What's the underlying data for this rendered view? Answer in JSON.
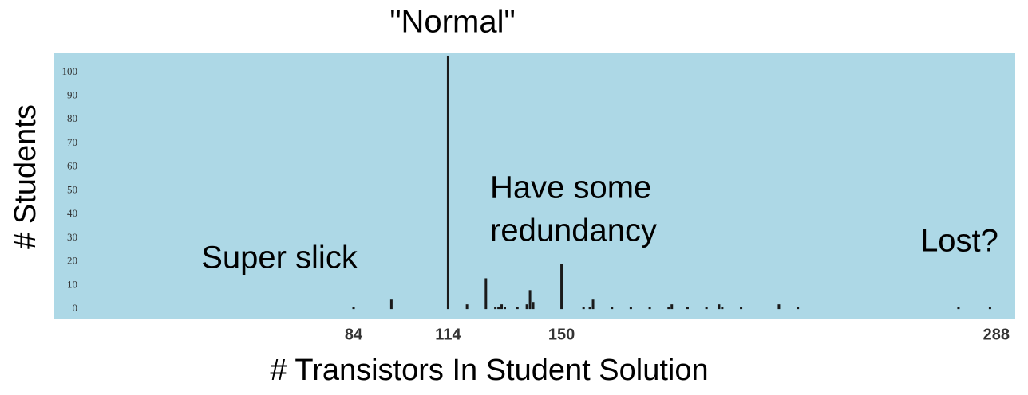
{
  "chart_data": {
    "type": "bar",
    "x_label": "# Transistors In Student Solution",
    "y_label": "# Students",
    "x": [
      84,
      96,
      114,
      120,
      126,
      129,
      130,
      131,
      132,
      136,
      139,
      140,
      141,
      150,
      157,
      159,
      160,
      166,
      172,
      178,
      184,
      185,
      190,
      196,
      200,
      201,
      207,
      219,
      225,
      276,
      286
    ],
    "values": [
      1,
      4,
      107,
      2,
      13,
      1,
      1,
      2,
      1,
      1,
      2,
      8,
      3,
      19,
      1,
      1,
      4,
      1,
      1,
      1,
      1,
      2,
      1,
      1,
      2,
      1,
      1,
      2,
      1,
      1,
      1
    ],
    "color": "#1a1a1a",
    "background": "#add8e6",
    "xlim": [
      -11,
      294
    ],
    "xticks": [
      84,
      114,
      150,
      288
    ],
    "ylim": [
      -4,
      108
    ],
    "yticks": [
      0,
      10,
      20,
      30,
      40,
      50,
      60,
      70,
      80,
      90,
      100
    ],
    "grid": false,
    "annotations": [
      {
        "lines": [
          "\"Normal\""
        ]
      },
      {
        "lines": [
          "Super slick"
        ]
      },
      {
        "lines": [
          "Have some",
          "redundancy"
        ]
      },
      {
        "lines": [
          "Lost?"
        ]
      }
    ]
  }
}
